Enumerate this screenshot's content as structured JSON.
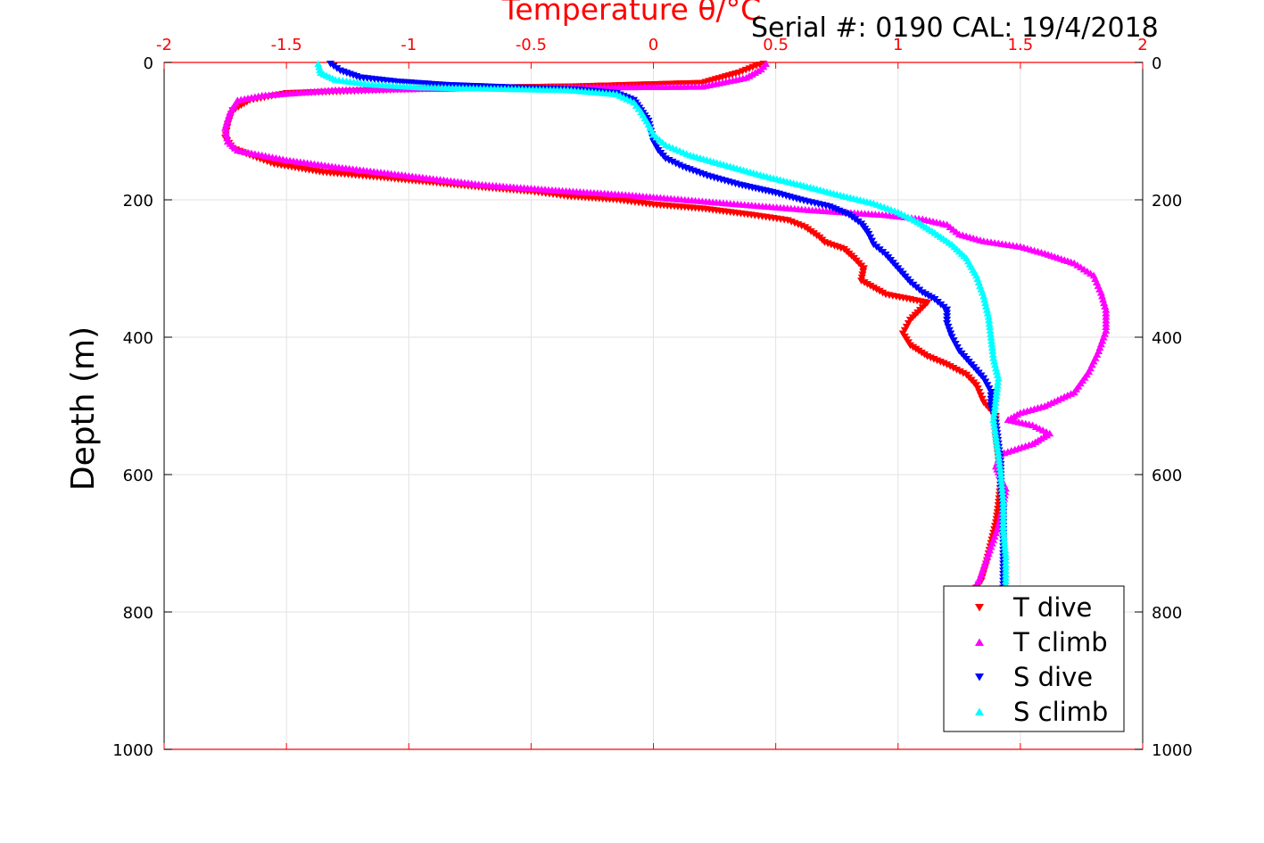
{
  "serial_label": "Serial #: 0190  CAL: 19/4/2018",
  "chart_data": {
    "type": "scatter",
    "title": "Temperature θ/°C",
    "xlabel": "Temperature θ/°C",
    "ylabel": "Depth (m)",
    "xlim": [
      -2,
      2
    ],
    "ylim": [
      0,
      1000
    ],
    "y_reversed": true,
    "xticks": [
      "-2",
      "-1.5",
      "-1",
      "-0.5",
      "0",
      "0.5",
      "1",
      "1.5",
      "2"
    ],
    "yticks": [
      "0",
      "200",
      "400",
      "600",
      "800",
      "1000"
    ],
    "grid": true,
    "legend_position": "bottom-right",
    "x_axis_color": "#ff0000",
    "series": [
      {
        "name": "T dive",
        "marker": "triangle-down",
        "color": "#ff0000",
        "points": [
          [
            0.45,
            2
          ],
          [
            0.42,
            5
          ],
          [
            0.35,
            15
          ],
          [
            0.2,
            30
          ],
          [
            -0.3,
            35
          ],
          [
            -0.9,
            38
          ],
          [
            -1.5,
            45
          ],
          [
            -1.65,
            55
          ],
          [
            -1.72,
            70
          ],
          [
            -1.74,
            90
          ],
          [
            -1.75,
            110
          ],
          [
            -1.72,
            125
          ],
          [
            -1.65,
            135
          ],
          [
            -1.55,
            148
          ],
          [
            -1.35,
            160
          ],
          [
            -1.1,
            168
          ],
          [
            -0.9,
            175
          ],
          [
            -0.7,
            182
          ],
          [
            -0.5,
            188
          ],
          [
            -0.35,
            195
          ],
          [
            -0.15,
            200
          ],
          [
            0.0,
            207
          ],
          [
            0.2,
            213
          ],
          [
            0.4,
            222
          ],
          [
            0.55,
            230
          ],
          [
            0.62,
            240
          ],
          [
            0.68,
            255
          ],
          [
            0.7,
            262
          ],
          [
            0.78,
            272
          ],
          [
            0.82,
            285
          ],
          [
            0.86,
            300
          ],
          [
            0.85,
            318
          ],
          [
            0.9,
            328
          ],
          [
            0.95,
            338
          ],
          [
            1.05,
            345
          ],
          [
            1.12,
            350
          ],
          [
            1.05,
            375
          ],
          [
            1.02,
            395
          ],
          [
            1.05,
            412
          ],
          [
            1.12,
            428
          ],
          [
            1.2,
            440
          ],
          [
            1.28,
            455
          ],
          [
            1.32,
            470
          ],
          [
            1.35,
            495
          ],
          [
            1.4,
            515
          ],
          [
            1.4,
            545
          ],
          [
            1.41,
            575
          ],
          [
            1.42,
            610
          ],
          [
            1.41,
            645
          ],
          [
            1.4,
            670
          ],
          [
            1.38,
            700
          ],
          [
            1.36,
            730
          ],
          [
            1.34,
            755
          ],
          [
            1.32,
            765
          ]
        ]
      },
      {
        "name": "T climb",
        "marker": "triangle-up",
        "color": "#ff00ff",
        "points": [
          [
            0.46,
            2
          ],
          [
            0.44,
            10
          ],
          [
            0.38,
            22
          ],
          [
            0.2,
            35
          ],
          [
            -0.2,
            36
          ],
          [
            -0.7,
            37
          ],
          [
            -1.3,
            40
          ],
          [
            -1.6,
            48
          ],
          [
            -1.7,
            55
          ],
          [
            -1.73,
            72
          ],
          [
            -1.75,
            95
          ],
          [
            -1.74,
            115
          ],
          [
            -1.7,
            128
          ],
          [
            -1.5,
            142
          ],
          [
            -1.3,
            152
          ],
          [
            -1.0,
            165
          ],
          [
            -0.7,
            178
          ],
          [
            -0.4,
            186
          ],
          [
            -0.1,
            193
          ],
          [
            0.3,
            205
          ],
          [
            0.65,
            215
          ],
          [
            0.95,
            222
          ],
          [
            1.1,
            228
          ],
          [
            1.2,
            236
          ],
          [
            1.25,
            250
          ],
          [
            1.35,
            260
          ],
          [
            1.5,
            268
          ],
          [
            1.6,
            278
          ],
          [
            1.72,
            292
          ],
          [
            1.8,
            310
          ],
          [
            1.83,
            335
          ],
          [
            1.85,
            360
          ],
          [
            1.85,
            390
          ],
          [
            1.82,
            420
          ],
          [
            1.78,
            450
          ],
          [
            1.72,
            480
          ],
          [
            1.6,
            500
          ],
          [
            1.5,
            510
          ],
          [
            1.45,
            520
          ],
          [
            1.55,
            528
          ],
          [
            1.62,
            540
          ],
          [
            1.55,
            555
          ],
          [
            1.42,
            570
          ],
          [
            1.4,
            588
          ],
          [
            1.42,
            605
          ],
          [
            1.44,
            620
          ],
          [
            1.43,
            645
          ],
          [
            1.41,
            675
          ],
          [
            1.38,
            705
          ],
          [
            1.35,
            735
          ],
          [
            1.33,
            755
          ],
          [
            1.31,
            765
          ]
        ]
      },
      {
        "name": "S dive",
        "marker": "triangle-down",
        "color": "#0000ff",
        "points": [
          [
            -1.32,
            2
          ],
          [
            -1.28,
            12
          ],
          [
            -1.2,
            22
          ],
          [
            -1.05,
            28
          ],
          [
            -0.85,
            33
          ],
          [
            -0.55,
            37
          ],
          [
            -0.3,
            40
          ],
          [
            -0.15,
            45
          ],
          [
            -0.08,
            55
          ],
          [
            -0.05,
            70
          ],
          [
            -0.02,
            85
          ],
          [
            -0.01,
            100
          ],
          [
            0.0,
            115
          ],
          [
            0.02,
            128
          ],
          [
            0.05,
            140
          ],
          [
            0.12,
            152
          ],
          [
            0.22,
            165
          ],
          [
            0.35,
            178
          ],
          [
            0.5,
            190
          ],
          [
            0.6,
            200
          ],
          [
            0.72,
            210
          ],
          [
            0.8,
            222
          ],
          [
            0.85,
            235
          ],
          [
            0.88,
            250
          ],
          [
            0.9,
            265
          ],
          [
            0.95,
            280
          ],
          [
            1.0,
            300
          ],
          [
            1.05,
            320
          ],
          [
            1.1,
            335
          ],
          [
            1.15,
            345
          ],
          [
            1.2,
            360
          ],
          [
            1.2,
            380
          ],
          [
            1.22,
            400
          ],
          [
            1.25,
            420
          ],
          [
            1.3,
            440
          ],
          [
            1.35,
            460
          ],
          [
            1.38,
            480
          ],
          [
            1.38,
            500
          ],
          [
            1.4,
            525
          ],
          [
            1.41,
            555
          ],
          [
            1.42,
            585
          ],
          [
            1.42,
            615
          ],
          [
            1.43,
            650
          ],
          [
            1.43,
            690
          ],
          [
            1.43,
            730
          ],
          [
            1.43,
            760
          ],
          [
            1.43,
            765
          ]
        ]
      },
      {
        "name": "S climb",
        "marker": "triangle-up",
        "color": "#00ffff",
        "points": [
          [
            -1.37,
            2
          ],
          [
            -1.36,
            15
          ],
          [
            -1.3,
            25
          ],
          [
            -1.15,
            32
          ],
          [
            -0.95,
            36
          ],
          [
            -0.65,
            38
          ],
          [
            -0.35,
            40
          ],
          [
            -0.15,
            46
          ],
          [
            -0.08,
            58
          ],
          [
            -0.05,
            72
          ],
          [
            -0.02,
            90
          ],
          [
            0.0,
            105
          ],
          [
            0.05,
            120
          ],
          [
            0.15,
            135
          ],
          [
            0.3,
            150
          ],
          [
            0.45,
            165
          ],
          [
            0.6,
            178
          ],
          [
            0.75,
            192
          ],
          [
            0.9,
            205
          ],
          [
            1.0,
            218
          ],
          [
            1.08,
            232
          ],
          [
            1.15,
            248
          ],
          [
            1.22,
            265
          ],
          [
            1.28,
            285
          ],
          [
            1.32,
            310
          ],
          [
            1.35,
            340
          ],
          [
            1.37,
            370
          ],
          [
            1.38,
            400
          ],
          [
            1.39,
            430
          ],
          [
            1.41,
            460
          ],
          [
            1.4,
            490
          ],
          [
            1.39,
            520
          ],
          [
            1.4,
            545
          ],
          [
            1.41,
            570
          ],
          [
            1.42,
            600
          ],
          [
            1.43,
            640
          ],
          [
            1.43,
            680
          ],
          [
            1.44,
            720
          ],
          [
            1.44,
            760
          ],
          [
            1.44,
            765
          ]
        ]
      }
    ]
  }
}
